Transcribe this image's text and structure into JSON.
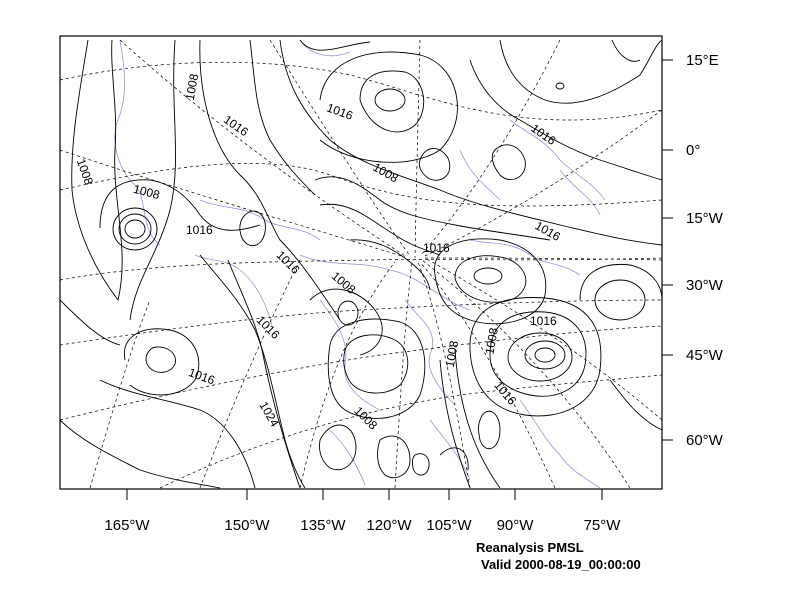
{
  "map": {
    "bottom_axis_labels": [
      "165°W",
      "150°W",
      "135°W",
      "120°W",
      "105°W",
      "90°W",
      "75°W"
    ],
    "right_axis_labels": [
      "15°E",
      "0°",
      "15°W",
      "30°W",
      "45°W",
      "60°W"
    ],
    "contour_labels": [
      "1008",
      "1016",
      "1008",
      "1016",
      "1008",
      "1008",
      "1016",
      "1016",
      "1016",
      "1016",
      "1008",
      "1016",
      "1016",
      "1016",
      "1008",
      "1016",
      "1008",
      "1016",
      "1024",
      "1008",
      "1008",
      "1016"
    ],
    "colors": {
      "contour": "#000000",
      "coastline": "#a58fd6",
      "grid": "#000000",
      "frame": "#000000"
    }
  },
  "footer": {
    "line1": "Reanalysis PMSL",
    "line2": "Valid 2000-08-19_00:00:00"
  }
}
